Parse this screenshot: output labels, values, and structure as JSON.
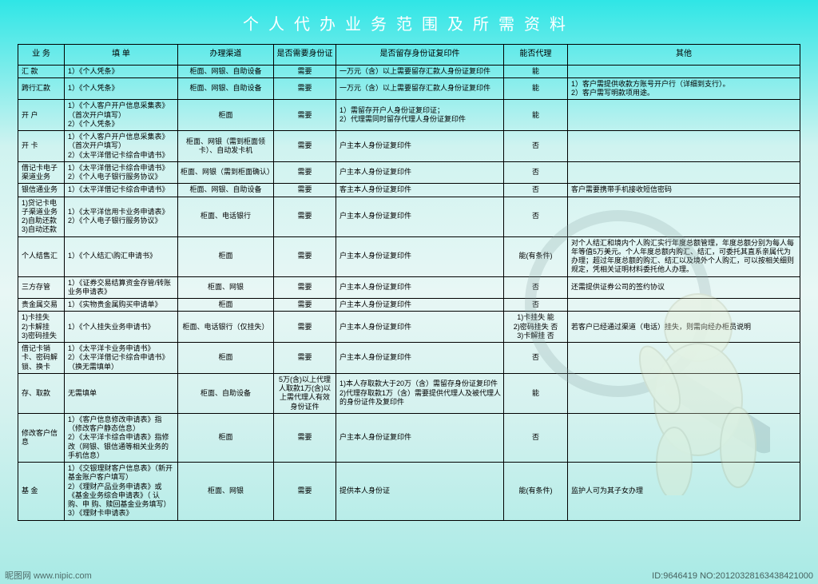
{
  "title": "个人代办业务范围及所需资料",
  "columns": [
    "业 务",
    "填 单",
    "办理渠道",
    "是否需要身份证",
    "是否留存身份证复印件",
    "能否代理",
    "其他"
  ],
  "rows": [
    {
      "biz": "汇 款",
      "form": "1）《个人凭条》",
      "chan": "柜面、网银、自助设备",
      "id": "需要",
      "copy": "一万元（含）以上需要留存汇款人身份证复印件",
      "proxy": "能",
      "other": ""
    },
    {
      "biz": "跨行汇款",
      "form": "1）《个人凭条》",
      "chan": "柜面、网银、自助设备",
      "id": "需要",
      "copy": "一万元（含）以上需要留存汇款人身份证复印件",
      "proxy": "能",
      "other": "1）客户需提供收款方账号开户行（详细到支行）。\n2）客户需写明款项用途。"
    },
    {
      "biz": "开 户",
      "form": "1）《个人客户开户信息采集表》（首次开户填写）\n2）《个人凭条》",
      "chan": "柜面",
      "id": "需要",
      "copy": "1）需留存开户人身份证复印证；\n2）代理需同时留存代理人身份证复印件",
      "proxy": "能",
      "other": ""
    },
    {
      "biz": "开 卡",
      "form": "1）《个人客户开户信息采集表》（首次开户填写）\n2）《太平洋借记卡综合申请书》",
      "chan": "柜面、网银（需到柜面领卡）、自动发卡机",
      "id": "需要",
      "copy": "户主本人身份证复印件",
      "proxy": "否",
      "other": ""
    },
    {
      "biz": "借记卡电子渠道业务",
      "form": "1）《太平洋借记卡综合申请书》\n2）《个人电子银行服务协议》",
      "chan": "柜面、网银（需到柜面确认）",
      "id": "需要",
      "copy": "户主本人身份证复印件",
      "proxy": "否",
      "other": ""
    },
    {
      "biz": "银信通业务",
      "form": "1）《太平洋借记卡综合申请书》",
      "chan": "柜面、网银、自助设备",
      "id": "需要",
      "copy": "客主本人身份证复印件",
      "proxy": "否",
      "other": "客户需要携带手机接收短信密码"
    },
    {
      "biz": "1)贷记卡电子渠道业务\n2)自助还款\n3)自动还款",
      "form": "1）《太平洋信用卡业务申请表》\n2）《个人电子银行服务协议》",
      "chan": "柜面、电话银行",
      "id": "需要",
      "copy": "户主本人身份证复印件",
      "proxy": "否",
      "other": ""
    },
    {
      "biz": "个人结售汇",
      "form": "1）《个人结汇\\购汇申请书》",
      "chan": "柜面",
      "id": "需要",
      "copy": "户主本人身份证复印件",
      "proxy": "能(有条件)",
      "other": "对个人结汇和境内个人购汇实行年度总额管理，年度总额分别为每人每年等值5万美元。个人年度总额内购汇、结汇，可委托其直系亲属代为办理；超过年度总额的购汇、结汇以及境外个人购汇，可以按相关细则规定，凭相关证明材料委托他人办理。"
    },
    {
      "biz": "三方存管",
      "form": "1）《证券交易结算资金存管/转账业务申请表》",
      "chan": "柜面、网银",
      "id": "需要",
      "copy": "户主本人身份证复印件",
      "proxy": "否",
      "other": "还需提供证券公司的签约协议"
    },
    {
      "biz": "贵金属交易",
      "form": "1）《实物贵金属购买申请单》",
      "chan": "柜面",
      "id": "需要",
      "copy": "户主本人身份证复印件",
      "proxy": "否",
      "other": ""
    },
    {
      "biz": "1)卡挂失\n2)卡解挂\n3)密码挂失",
      "form": "1）《个人挂失业务申请书》",
      "chan": "柜面、电话银行（仅挂失）",
      "id": "需要",
      "copy": "户主本人身份证复印件",
      "proxy": "1)卡挂失 能\n2)密码挂失 否\n3)卡解挂 否",
      "other": "若客户已经通过渠道（电话）挂失，则需向经办柜员说明"
    },
    {
      "biz": "借记卡销卡、密码解锁、换卡",
      "form": "1）《太平洋卡业务申请书》\n2）《太平洋借记卡综合申请书》（换无需填单）",
      "chan": "柜面",
      "id": "需要",
      "copy": "户主本人身份证复印件",
      "proxy": "否",
      "other": ""
    },
    {
      "biz": "存、取款",
      "form": "无需填单",
      "chan": "柜面、自助设备",
      "id": "5万(含)以上代理人取款1万(含)以上需代理人有效身份证件",
      "copy": "1)本人存取款大于20万（含）需留存身份证复印件\n2)代理存取款1万（含）需要提供代理人及被代理人的身份证件及复印件",
      "proxy": "能",
      "other": ""
    },
    {
      "biz": "修改客户信息",
      "form": "1）《客户信息修改申请表》指（修改客户静态信息）\n2）《太平洋卡综合申请表》指修改（网银、银信通等相关业务的手机信息）",
      "chan": "柜面",
      "id": "需要",
      "copy": "户主本人身份证复印件",
      "proxy": "否",
      "other": ""
    },
    {
      "biz": "基 金",
      "form": "1）《交银理财客户信息表》（新开基金账户客户填写）\n2）《理财产品业务申请表》或《基金业务综合申请表》（ 认 购、申 购、赎回基金业务填写）\n3）《理财卡申请表》",
      "chan": "柜面、网银",
      "id": "需要",
      "copy": "提供本人身份证",
      "proxy": "能(有条件)",
      "other": "监护人可为其子女办理"
    }
  ],
  "watermark_left": "昵图网 www.nipic.com",
  "watermark_right": "ID:9646419 NO:20120328163438421000",
  "colors": {
    "border": "#000000",
    "title_text": "#ffffff"
  }
}
